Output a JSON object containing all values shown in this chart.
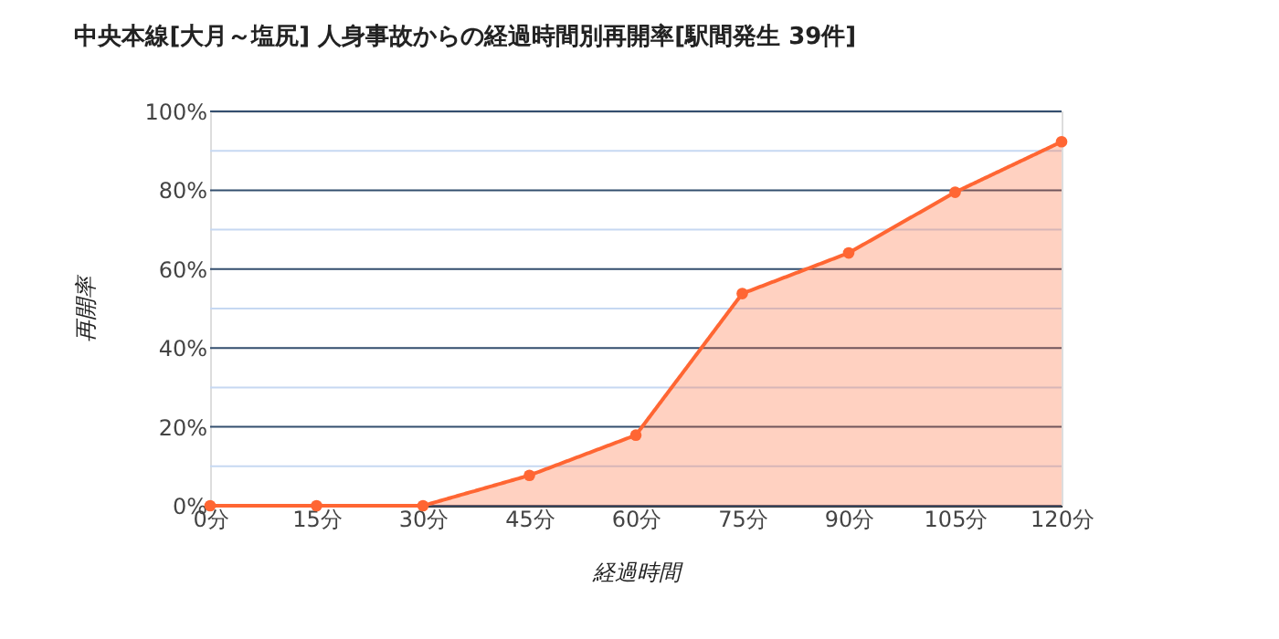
{
  "chart_data": {
    "type": "area",
    "title": "中央本線[大月～塩尻]  人身事故からの経過時間別再開率[駅間発生 39件]",
    "xlabel": "経過時間",
    "ylabel": "再開率",
    "categories": [
      "0分",
      "15分",
      "30分",
      "45分",
      "60分",
      "75分",
      "90分",
      "105分",
      "120分"
    ],
    "series": [
      {
        "color": "#ff6633",
        "values": [
          0,
          0,
          0,
          7.7,
          17.9,
          53.8,
          64.1,
          79.5,
          92.3
        ]
      }
    ],
    "ylim": [
      0,
      100
    ],
    "yticks": [
      {
        "value": 0,
        "label": "0%"
      },
      {
        "value": 10,
        "label": null
      },
      {
        "value": 20,
        "label": "20%"
      },
      {
        "value": 30,
        "label": null
      },
      {
        "value": 40,
        "label": "40%"
      },
      {
        "value": 50,
        "label": null
      },
      {
        "value": 60,
        "label": "60%"
      },
      {
        "value": 70,
        "label": null
      },
      {
        "value": 80,
        "label": "80%"
      },
      {
        "value": 90,
        "label": null
      },
      {
        "value": 100,
        "label": "100%"
      }
    ],
    "grid": "y",
    "marker": "circle",
    "line_style": "solid"
  }
}
